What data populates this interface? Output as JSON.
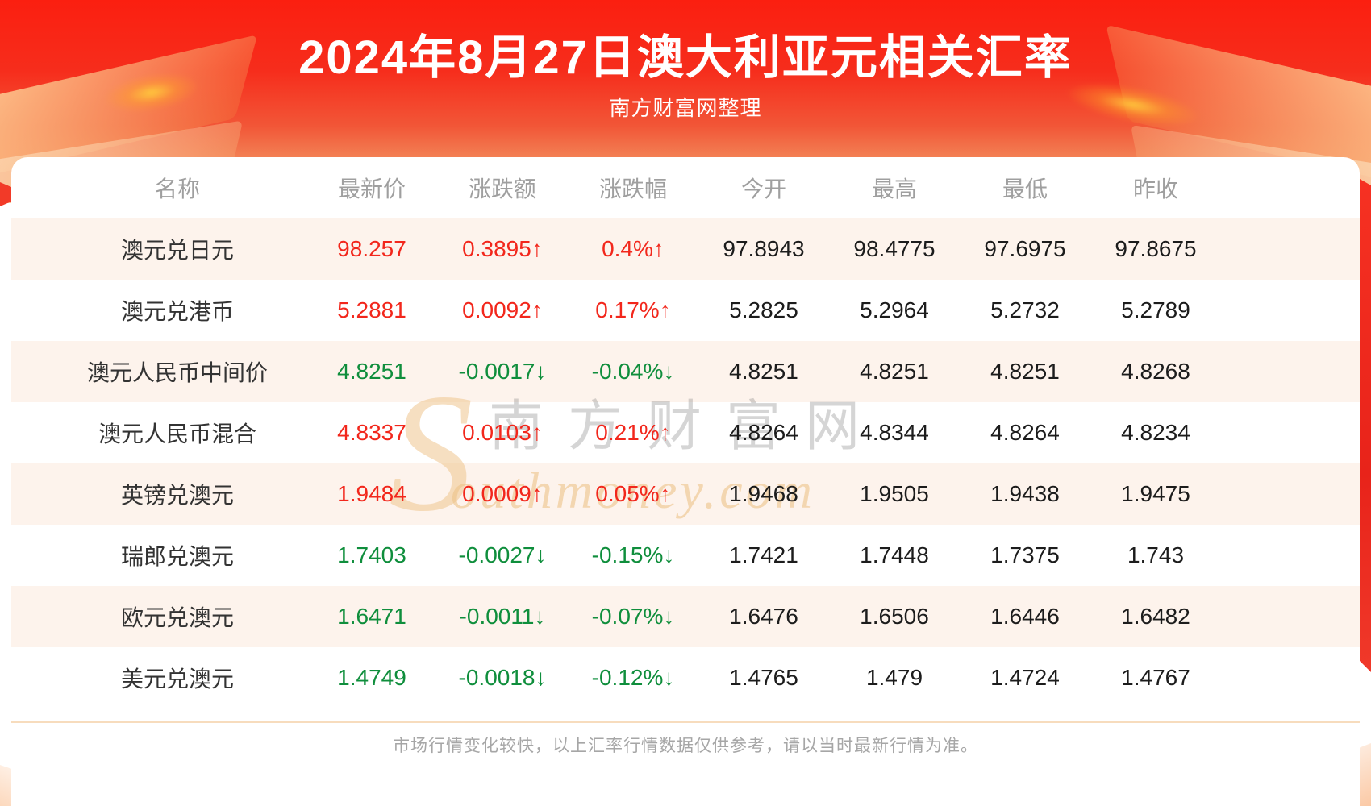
{
  "page": {
    "title": "2024年8月27日澳大利亚元相关汇率",
    "subtitle": "南方财富网整理",
    "footnote": "市场行情变化较快，以上汇率行情数据仅供参考，请以当时最新行情为准。"
  },
  "watermark": {
    "initial": "S",
    "cn": "南方财富网",
    "en": "outhmoney.com"
  },
  "colors": {
    "up_red": "#f2271c",
    "down_green": "#0f8e3c",
    "header_gradient_top": "#fb1f10",
    "header_gradient_bottom": "#f7ab7c",
    "row_alt_bg": "#fdf3ec",
    "divider_line": "#f7dcbd"
  },
  "chart_data": {
    "type": "table",
    "title": "2024年8月27日澳大利亚元相关汇率",
    "columns": [
      "名称",
      "最新价",
      "涨跌额",
      "涨跌幅",
      "今开",
      "最高",
      "最低",
      "昨收"
    ],
    "rows": [
      {
        "name": "澳元兑日元",
        "last": "98.257",
        "change": "0.3895↑",
        "change_pct": "0.4%↑",
        "open": "97.8943",
        "high": "98.4775",
        "low": "97.6975",
        "prev_close": "97.8675",
        "trend": "up"
      },
      {
        "name": "澳元兑港币",
        "last": "5.2881",
        "change": "0.0092↑",
        "change_pct": "0.17%↑",
        "open": "5.2825",
        "high": "5.2964",
        "low": "5.2732",
        "prev_close": "5.2789",
        "trend": "up"
      },
      {
        "name": "澳元人民币中间价",
        "last": "4.8251",
        "change": "-0.0017↓",
        "change_pct": "-0.04%↓",
        "open": "4.8251",
        "high": "4.8251",
        "low": "4.8251",
        "prev_close": "4.8268",
        "trend": "down"
      },
      {
        "name": "澳元人民币混合",
        "last": "4.8337",
        "change": "0.0103↑",
        "change_pct": "0.21%↑",
        "open": "4.8264",
        "high": "4.8344",
        "low": "4.8264",
        "prev_close": "4.8234",
        "trend": "up"
      },
      {
        "name": "英镑兑澳元",
        "last": "1.9484",
        "change": "0.0009↑",
        "change_pct": "0.05%↑",
        "open": "1.9468",
        "high": "1.9505",
        "low": "1.9438",
        "prev_close": "1.9475",
        "trend": "up"
      },
      {
        "name": "瑞郎兑澳元",
        "last": "1.7403",
        "change": "-0.0027↓",
        "change_pct": "-0.15%↓",
        "open": "1.7421",
        "high": "1.7448",
        "low": "1.7375",
        "prev_close": "1.743",
        "trend": "down"
      },
      {
        "name": "欧元兑澳元",
        "last": "1.6471",
        "change": "-0.0011↓",
        "change_pct": "-0.07%↓",
        "open": "1.6476",
        "high": "1.6506",
        "low": "1.6446",
        "prev_close": "1.6482",
        "trend": "down"
      },
      {
        "name": "美元兑澳元",
        "last": "1.4749",
        "change": "-0.0018↓",
        "change_pct": "-0.12%↓",
        "open": "1.4765",
        "high": "1.479",
        "low": "1.4724",
        "prev_close": "1.4767",
        "trend": "down"
      }
    ]
  }
}
